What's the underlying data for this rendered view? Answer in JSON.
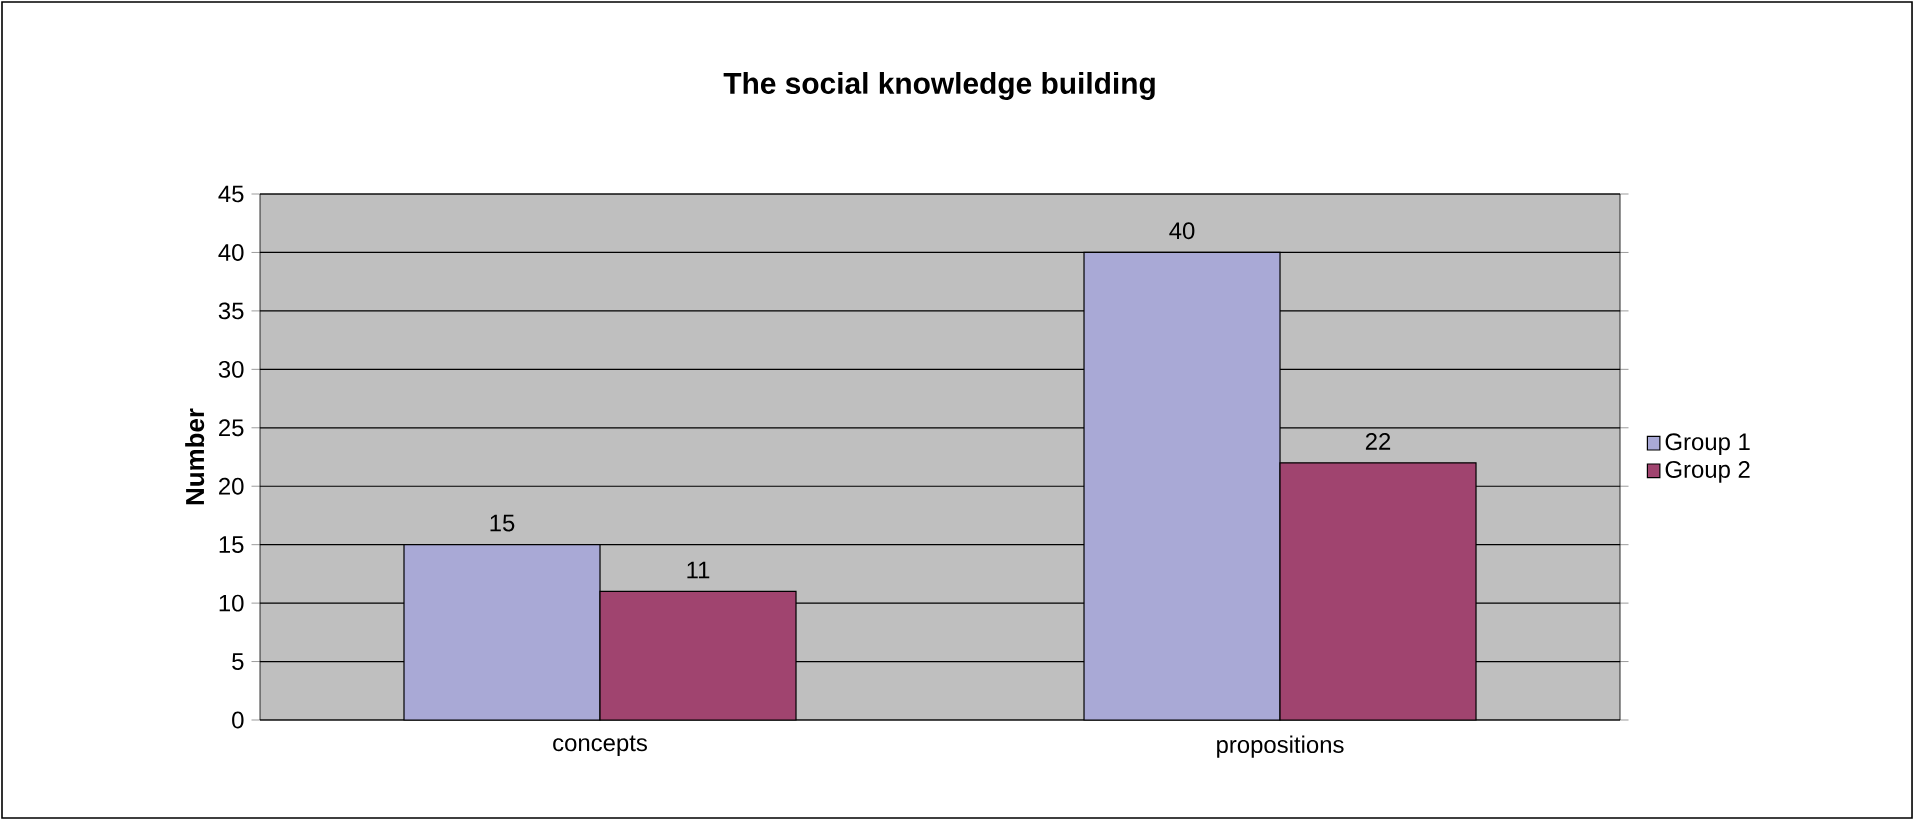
{
  "chart_data": {
    "type": "bar",
    "title": "The social knowledge building",
    "ylabel": "Number",
    "categories": [
      "concepts",
      "propositions"
    ],
    "series": [
      {
        "name": "Group 1",
        "color": "#a9a9d6",
        "values": [
          15,
          40
        ]
      },
      {
        "name": "Group 2",
        "color": "#a0446f",
        "values": [
          11,
          22
        ]
      }
    ],
    "ylim": [
      0,
      45
    ],
    "yticks": [
      0,
      5,
      10,
      15,
      20,
      25,
      30,
      35,
      40,
      45
    ],
    "grid": "y",
    "legend": "right",
    "data_labels": true
  }
}
